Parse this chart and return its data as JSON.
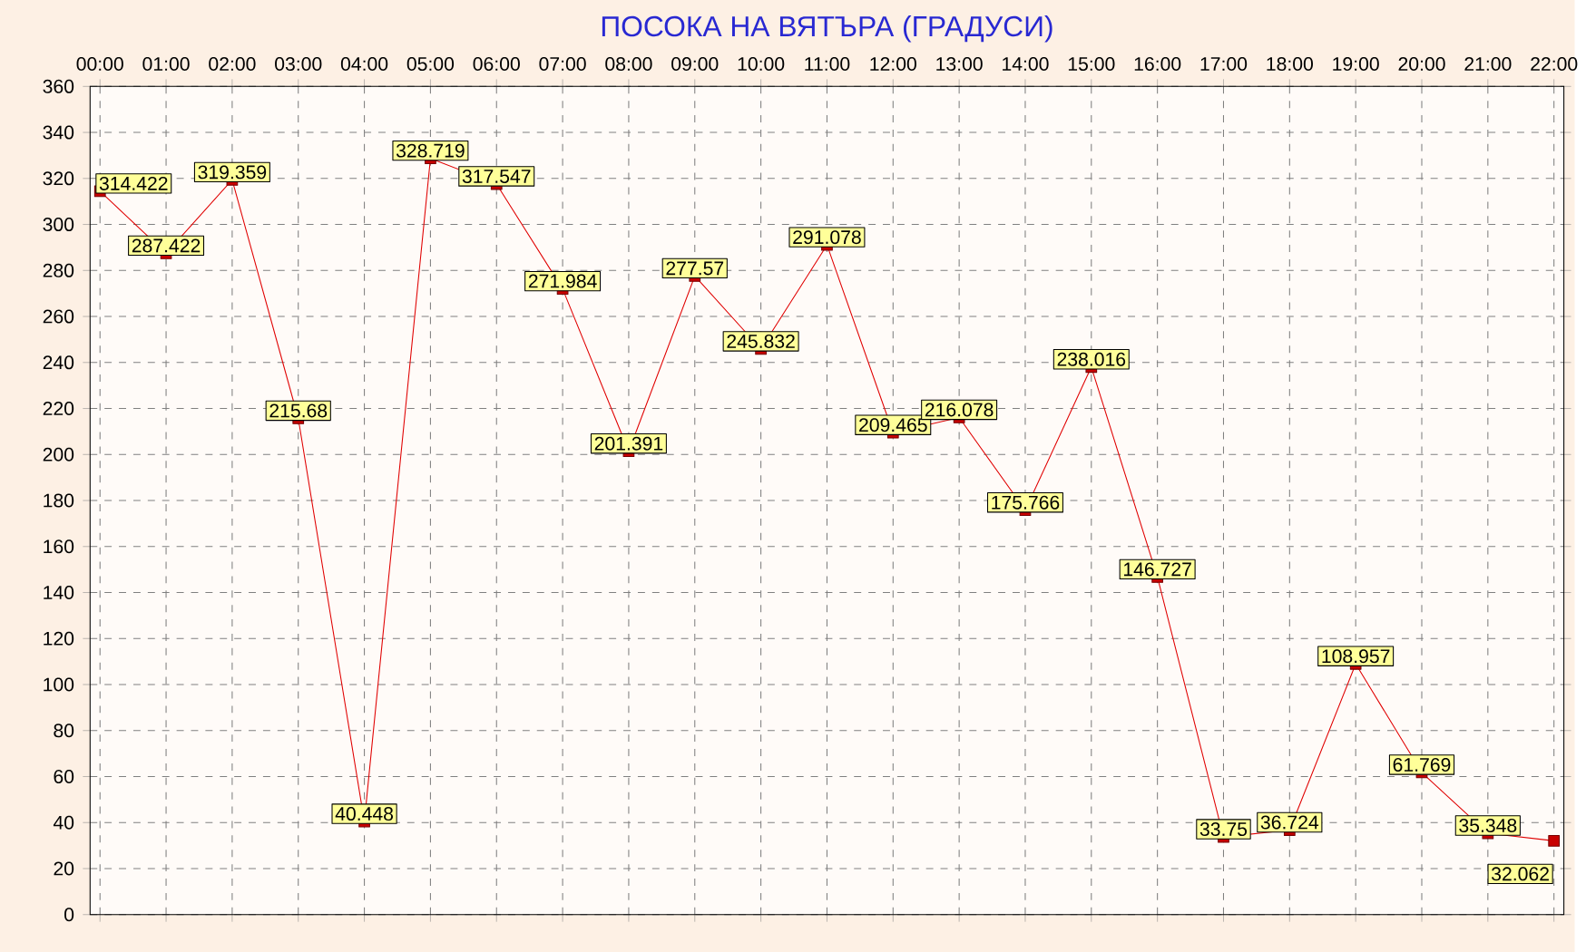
{
  "chart_data": {
    "type": "line",
    "title": "ПОСОКА НА ВЯТЪРА    (ГРАДУСИ)",
    "categories": [
      "00:00",
      "01:00",
      "02:00",
      "03:00",
      "04:00",
      "05:00",
      "06:00",
      "07:00",
      "08:00",
      "09:00",
      "10:00",
      "11:00",
      "12:00",
      "13:00",
      "14:00",
      "15:00",
      "16:00",
      "17:00",
      "18:00",
      "19:00",
      "20:00",
      "21:00",
      "22:00"
    ],
    "values": [
      314.422,
      287.422,
      319.359,
      215.68,
      40.448,
      328.719,
      317.547,
      271.984,
      201.391,
      277.57,
      245.832,
      291.078,
      209.465,
      216.078,
      175.766,
      238.016,
      146.727,
      33.75,
      36.724,
      108.957,
      61.769,
      35.348,
      32.062
    ],
    "color": "#e00000",
    "ylim": [
      0,
      360
    ],
    "yticks": [
      0,
      20,
      40,
      60,
      80,
      100,
      120,
      140,
      160,
      180,
      200,
      220,
      240,
      260,
      280,
      300,
      320,
      340,
      360
    ],
    "grid": true,
    "marker": "square",
    "line_style": "solid",
    "data_labels": true
  }
}
